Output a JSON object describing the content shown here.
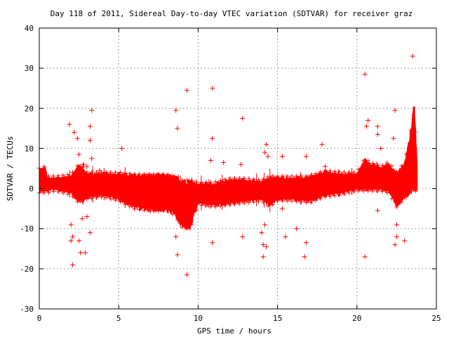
{
  "chart_data": {
    "type": "scatter",
    "title": "Day 118 of 2011, Sidereal Day-to-day VTEC variation (SDTVAR) for receiver graz",
    "xlabel": "GPS time / hours",
    "ylabel": "SDTVAR / TECUs",
    "xlim": [
      0,
      25
    ],
    "ylim": [
      -30,
      40
    ],
    "x_ticks": [
      0,
      5,
      10,
      15,
      20,
      25
    ],
    "y_ticks": [
      -30,
      -20,
      -10,
      0,
      10,
      20,
      30,
      40
    ],
    "grid": true,
    "marker": "+",
    "color": "#ff0000",
    "band": {
      "x": [
        0.0,
        0.4,
        0.5,
        1.0,
        2.0,
        2.5,
        3.0,
        4.0,
        5.0,
        6.0,
        7.0,
        8.0,
        8.5,
        9.0,
        9.5,
        10.0,
        11.0,
        12.0,
        13.0,
        14.0,
        14.5,
        15.0,
        16.0,
        17.0,
        18.0,
        19.0,
        20.0,
        20.5,
        20.8,
        21.5,
        22.0,
        22.5,
        23.0,
        23.4,
        23.6,
        23.8
      ],
      "upper": [
        4.5,
        5.0,
        2.5,
        2.5,
        3.0,
        5.5,
        3.5,
        3.5,
        3.5,
        3.0,
        3.0,
        3.0,
        2.5,
        1.5,
        1.5,
        1.0,
        1.0,
        2.0,
        2.0,
        1.5,
        2.5,
        2.5,
        2.5,
        2.5,
        4.0,
        3.5,
        3.5,
        7.0,
        6.0,
        5.0,
        6.0,
        3.5,
        6.0,
        14.0,
        21.0,
        6.0
      ],
      "lower": [
        -0.5,
        -0.5,
        -0.5,
        0.0,
        -1.0,
        -3.0,
        -2.0,
        -1.5,
        -2.5,
        -4.5,
        -5.0,
        -5.0,
        -6.0,
        -9.0,
        -9.5,
        -3.5,
        -4.0,
        -3.5,
        -3.0,
        -2.5,
        -4.0,
        -2.5,
        -2.5,
        -3.0,
        -1.5,
        -1.0,
        0.0,
        0.0,
        0.0,
        0.0,
        -0.5,
        -4.0,
        -2.0,
        0.0,
        0.0,
        0.0
      ]
    },
    "outliers": [
      [
        1.9,
        16.0
      ],
      [
        2.2,
        14.0
      ],
      [
        2.4,
        12.5
      ],
      [
        2.5,
        8.5
      ],
      [
        2.8,
        6.0
      ],
      [
        3.0,
        5.5
      ],
      [
        3.2,
        15.5
      ],
      [
        3.3,
        19.5
      ],
      [
        3.2,
        12.0
      ],
      [
        3.3,
        7.5
      ],
      [
        3.8,
        4.5
      ],
      [
        2.0,
        -9.0
      ],
      [
        2.1,
        -12.0
      ],
      [
        2.0,
        -13.0
      ],
      [
        2.1,
        -19.0
      ],
      [
        2.5,
        -13.0
      ],
      [
        2.6,
        -16.0
      ],
      [
        2.7,
        -7.5
      ],
      [
        2.9,
        -16.0
      ],
      [
        3.2,
        -11.0
      ],
      [
        3.0,
        -7.0
      ],
      [
        5.2,
        10.0
      ],
      [
        7.0,
        -5.5
      ],
      [
        8.6,
        19.5
      ],
      [
        8.7,
        15.0
      ],
      [
        8.6,
        -12.0
      ],
      [
        8.7,
        -16.5
      ],
      [
        9.3,
        24.5
      ],
      [
        9.3,
        -21.5
      ],
      [
        10.9,
        25.0
      ],
      [
        10.9,
        12.5
      ],
      [
        10.8,
        7.0
      ],
      [
        11.6,
        6.5
      ],
      [
        10.9,
        -13.5
      ],
      [
        12.8,
        17.5
      ],
      [
        12.7,
        6.0
      ],
      [
        12.8,
        -12.0
      ],
      [
        14.1,
        -17.0
      ],
      [
        14.1,
        -14.0
      ],
      [
        14.0,
        -11.0
      ],
      [
        14.3,
        -14.5
      ],
      [
        14.2,
        -9.0
      ],
      [
        14.3,
        11.0
      ],
      [
        14.2,
        9.0
      ],
      [
        14.4,
        8.0
      ],
      [
        15.3,
        8.0
      ],
      [
        15.5,
        -12.0
      ],
      [
        15.3,
        -5.0
      ],
      [
        16.2,
        -10.0
      ],
      [
        16.8,
        8.0
      ],
      [
        16.8,
        -13.5
      ],
      [
        16.7,
        -17.0
      ],
      [
        17.8,
        11.0
      ],
      [
        18.0,
        5.5
      ],
      [
        20.5,
        28.5
      ],
      [
        20.5,
        -17.0
      ],
      [
        20.7,
        17.0
      ],
      [
        20.6,
        15.5
      ],
      [
        21.3,
        15.5
      ],
      [
        21.3,
        13.5
      ],
      [
        21.5,
        10.0
      ],
      [
        21.3,
        -5.5
      ],
      [
        22.4,
        19.5
      ],
      [
        22.3,
        12.5
      ],
      [
        22.5,
        -12.0
      ],
      [
        22.4,
        -14.0
      ],
      [
        22.5,
        -9.0
      ],
      [
        23.0,
        -13.0
      ],
      [
        23.5,
        33.0
      ]
    ]
  }
}
